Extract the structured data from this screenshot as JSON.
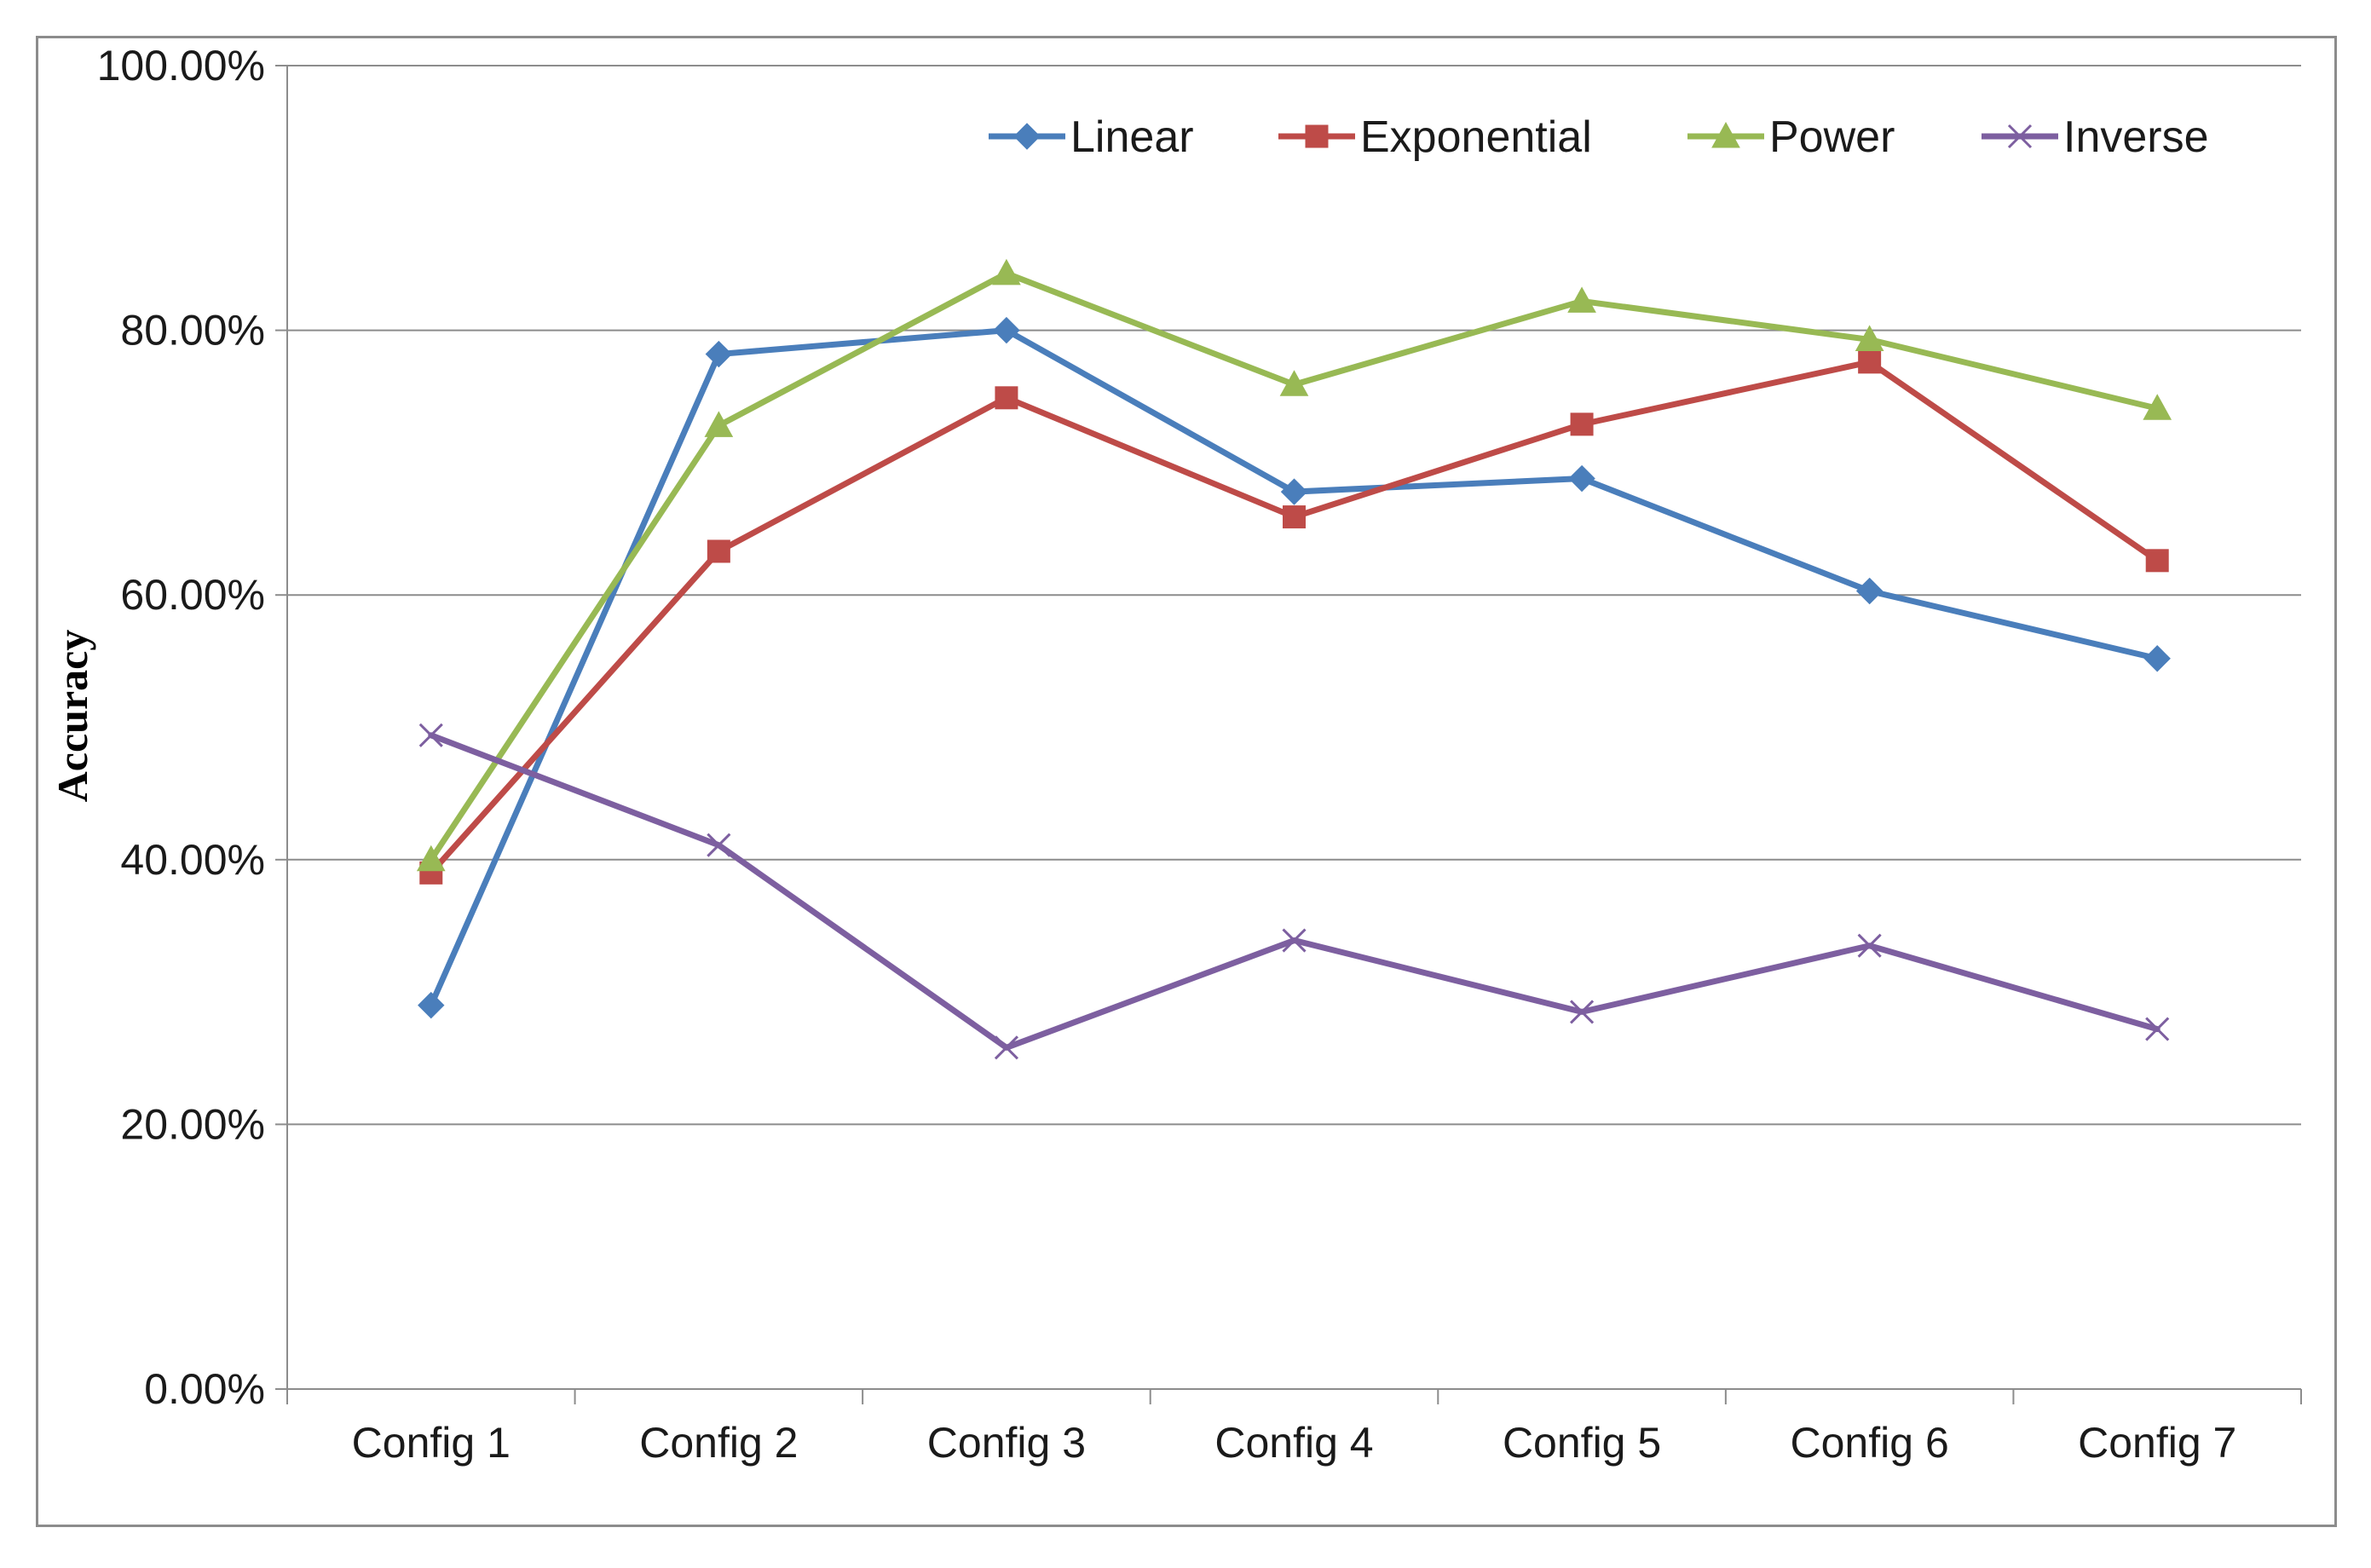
{
  "chart_data": {
    "type": "line",
    "title": "",
    "xlabel": "",
    "ylabel": "Accuracy",
    "categories": [
      "Config 1",
      "Config 2",
      "Config 3",
      "Config 4",
      "Config 5",
      "Config 6",
      "Config 7"
    ],
    "ylim": [
      0,
      1
    ],
    "yticks": [
      0,
      0.2,
      0.4,
      0.6,
      0.8,
      1.0
    ],
    "ytick_labels": [
      "0.00%",
      "20.00%",
      "40.00%",
      "60.00%",
      "80.00%",
      "100.00%"
    ],
    "grid": true,
    "legend": "top-right",
    "series": [
      {
        "name": "Linear",
        "color": "#4a7ebb",
        "marker": "diamond",
        "values": [
          0.29,
          0.782,
          0.8,
          0.678,
          0.688,
          0.603,
          0.552
        ]
      },
      {
        "name": "Exponential",
        "color": "#be4b48",
        "marker": "square",
        "values": [
          0.39,
          0.633,
          0.749,
          0.659,
          0.729,
          0.776,
          0.626
        ]
      },
      {
        "name": "Power",
        "color": "#98b954",
        "marker": "triangle",
        "values": [
          0.4,
          0.728,
          0.843,
          0.759,
          0.822,
          0.793,
          0.741
        ]
      },
      {
        "name": "Inverse",
        "color": "#7d5fa0",
        "marker": "x",
        "values": [
          0.494,
          0.411,
          0.258,
          0.339,
          0.285,
          0.335,
          0.272
        ]
      }
    ]
  }
}
